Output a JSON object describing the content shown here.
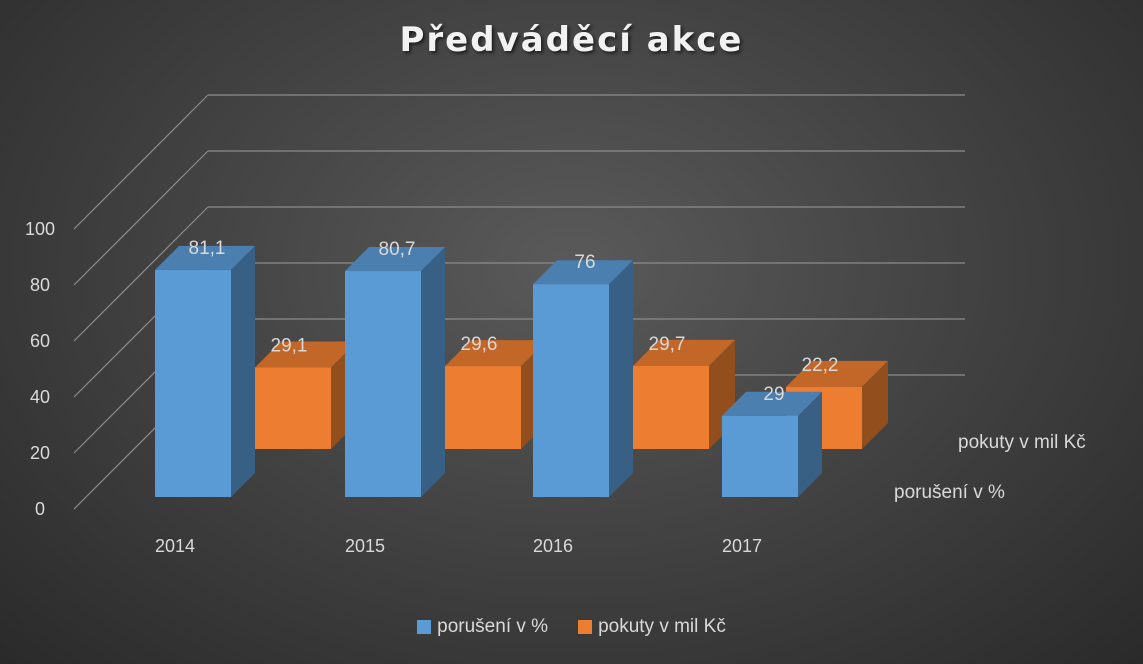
{
  "chart_data": {
    "type": "bar",
    "title": "Předváděcí akce",
    "categories": [
      "2014",
      "2015",
      "2016",
      "2017"
    ],
    "series": [
      {
        "name": "porušení v %",
        "values": [
          81.1,
          80.7,
          76,
          29
        ],
        "labels": [
          "81,1",
          "80,7",
          "76",
          "29"
        ],
        "color": "#5b9bd5"
      },
      {
        "name": "pokuty v mil Kč",
        "values": [
          29.1,
          29.6,
          29.7,
          22.2
        ],
        "labels": [
          "29,1",
          "29,6",
          "29,7",
          "22,2"
        ],
        "color": "#ed7d31"
      }
    ],
    "y_ticks": [
      "0",
      "20",
      "40",
      "60",
      "80",
      "100"
    ],
    "ylim": [
      0,
      100
    ],
    "depth_labels": [
      "pokuty v mil Kč",
      "porušení v %"
    ],
    "chart_style": "3d-column",
    "grid": true,
    "legend_position": "bottom"
  }
}
